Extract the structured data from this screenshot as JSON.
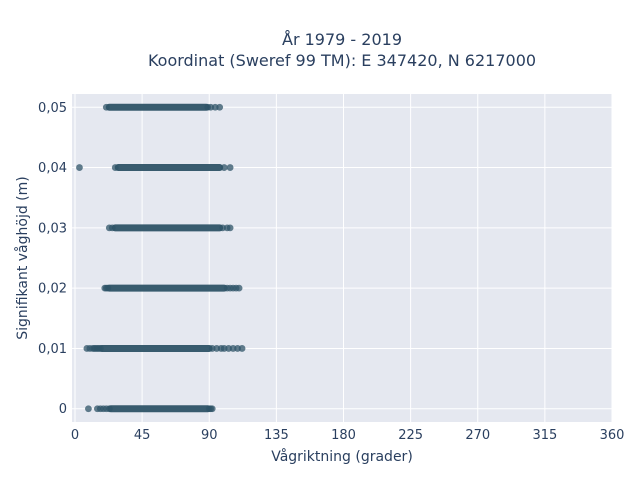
{
  "chart_data": {
    "type": "scatter",
    "title_lines": [
      "År 1979 - 2019",
      "Koordinat (Sweref 99 TM): E 347420, N 6217000"
    ],
    "xlabel": "Vågriktning (grader)",
    "ylabel": "Signifikant våghöjd (m)",
    "xlim": [
      -2,
      360
    ],
    "ylim": [
      -0.0022,
      0.0522
    ],
    "x_ticks": [
      0,
      45,
      90,
      135,
      180,
      225,
      270,
      315,
      360
    ],
    "x_tick_labels": [
      "0",
      "45",
      "90",
      "135",
      "180",
      "225",
      "270",
      "315",
      "360"
    ],
    "y_ticks": [
      0,
      0.01,
      0.02,
      0.03,
      0.04,
      0.05
    ],
    "y_tick_labels": [
      "0",
      "0,01",
      "0,02",
      "0,03",
      "0,04",
      "0,05"
    ],
    "grid": true,
    "legend": "none",
    "marker_color": "#2f5468",
    "plot_bg": "#e5e8f0",
    "series": [
      {
        "bands": [
          {
            "y": 0,
            "dense_from": 24,
            "dense_to": 89,
            "points": [
              9,
              15,
              17,
              19,
              21,
              23,
              90,
              91,
              92
            ]
          },
          {
            "y": 0.01,
            "dense_from": 18,
            "dense_to": 90,
            "points": [
              8,
              10,
              12,
              13,
              14,
              15,
              16,
              17,
              92,
              95,
              98,
              100,
              103,
              106,
              109,
              112
            ]
          },
          {
            "y": 0.02,
            "dense_from": 23,
            "dense_to": 100,
            "points": [
              20,
              21,
              22,
              102,
              104,
              106,
              108,
              110
            ]
          },
          {
            "y": 0.03,
            "dense_from": 27,
            "dense_to": 97,
            "points": [
              23,
              25,
              99,
              102,
              104
            ]
          },
          {
            "y": 0.04,
            "dense_from": 29,
            "dense_to": 97,
            "points": [
              3,
              27,
              100,
              104
            ]
          },
          {
            "y": 0.05,
            "dense_from": 23,
            "dense_to": 88,
            "points": [
              21,
              89,
              91,
              94,
              97
            ]
          }
        ]
      }
    ]
  }
}
